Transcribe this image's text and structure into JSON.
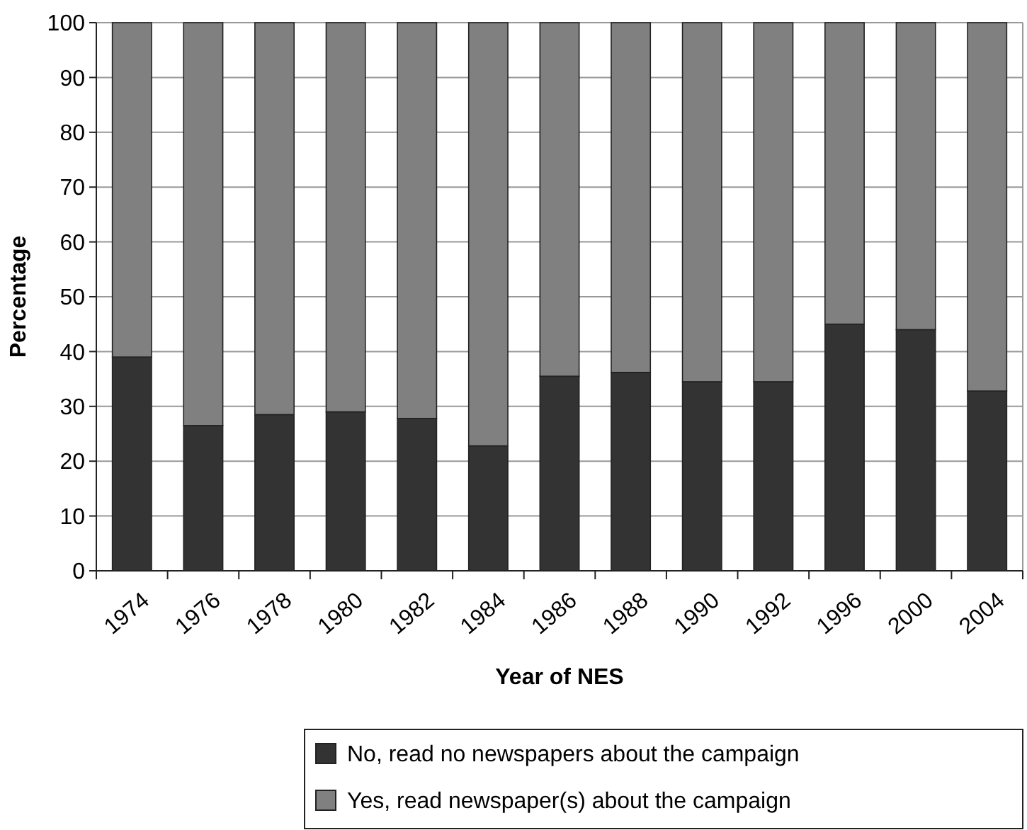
{
  "chart_data": {
    "type": "bar",
    "stacked": true,
    "xlabel": "Year of NES",
    "ylabel": "Percentage",
    "categories": [
      "1974",
      "1976",
      "1978",
      "1980",
      "1982",
      "1984",
      "1986",
      "1988",
      "1990",
      "1992",
      "1996",
      "2000",
      "2004"
    ],
    "series": [
      {
        "name": "No, read no newspapers about the campaign",
        "color": "#333333",
        "values": [
          39,
          26.5,
          28.5,
          29,
          27.8,
          22.8,
          35.5,
          36.2,
          34.5,
          34.5,
          45,
          44,
          32.8
        ]
      },
      {
        "name": "Yes, read newspaper(s) about the campaign",
        "color": "#808080",
        "values": [
          61,
          73.5,
          71.5,
          71,
          72.2,
          77.2,
          64.5,
          63.8,
          65.5,
          65.5,
          55,
          56,
          67.2
        ]
      }
    ],
    "ylim": [
      0,
      100
    ],
    "yticks": [
      0,
      10,
      20,
      30,
      40,
      50,
      60,
      70,
      80,
      90,
      100
    ],
    "grid": "y",
    "legend": "bottom"
  }
}
